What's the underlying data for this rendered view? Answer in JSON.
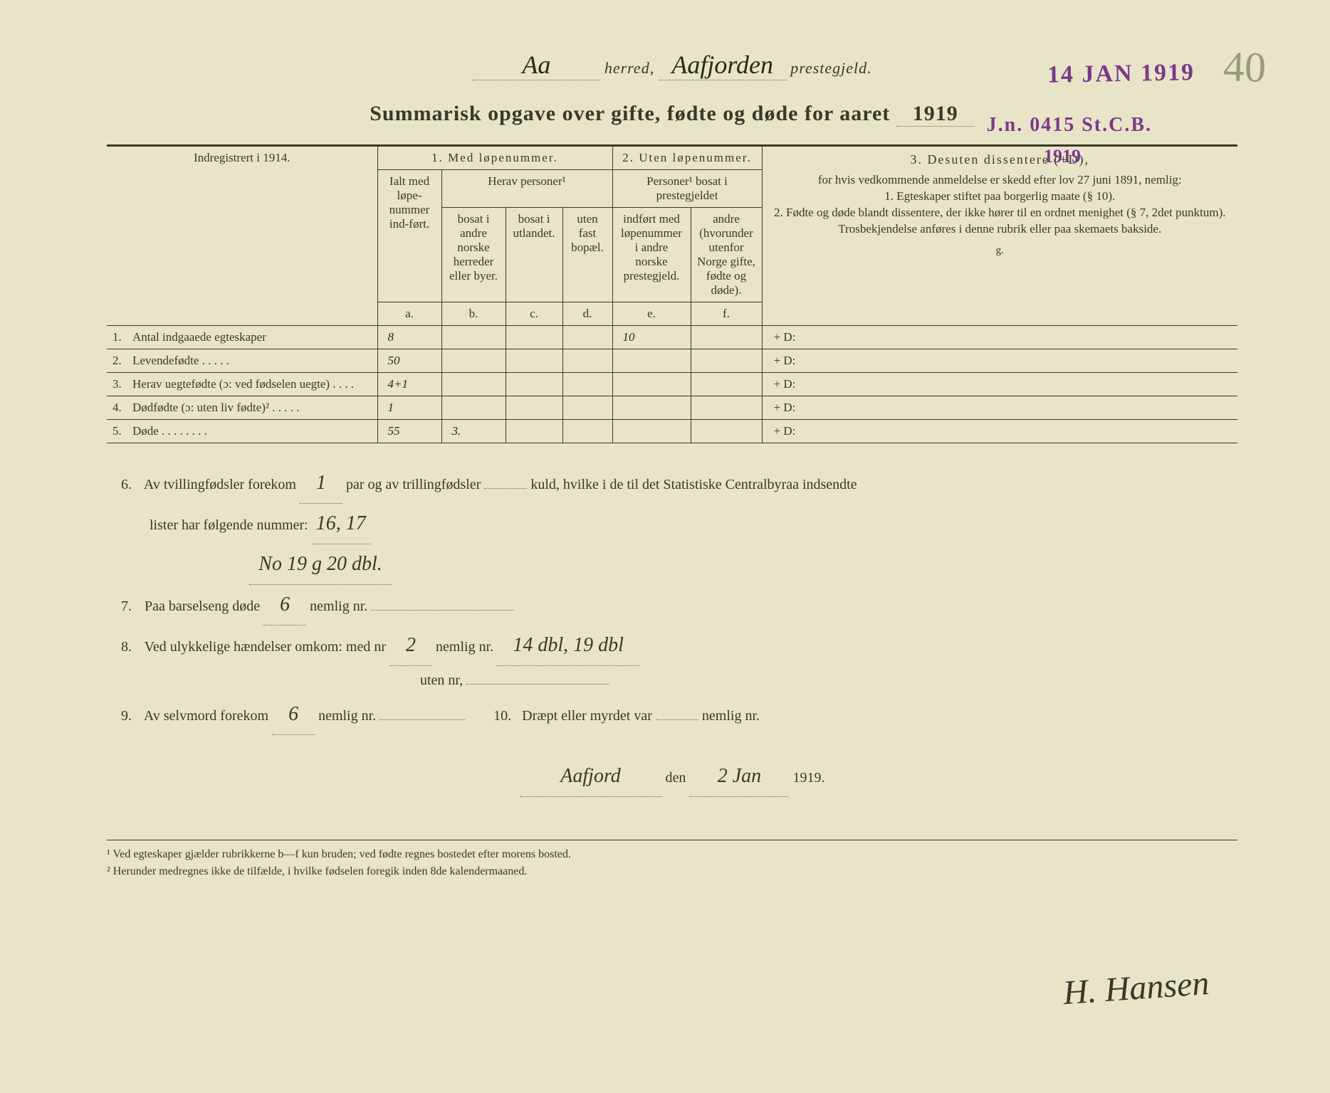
{
  "pageNumber": "40",
  "stampDate": "14 JAN 1919",
  "stampJn": "J.n. 0415 St.C.B.",
  "stampYear": "1919",
  "header": {
    "herred": "Aa",
    "herredLabel": "herred,",
    "prestegjeld": "Aafjorden",
    "prestegjeldLabel": "prestegjeld."
  },
  "title": {
    "pre": "Summarisk opgave over gifte, fødte og døde for aaret",
    "year": "1919"
  },
  "tableHead": {
    "indreg": "Indregistrert i 1914.",
    "sec1": "1. Med løpenummer.",
    "sec2": "2. Uten løpenummer.",
    "sec3": "3. Desuten dissentere (+D),",
    "ialt": "Ialt med løpe-nummer ind-ført.",
    "herav": "Herav personer¹",
    "b": "bosat i andre norske herreder eller byer.",
    "c": "bosat i utlandet.",
    "d": "uten fast bopæl.",
    "pers2": "Personer¹ bosat i prestegjeldet",
    "e": "indført med løpenummer i andre norske prestegjeld.",
    "f": "andre (hvorunder utenfor Norge gifte, fødte og døde).",
    "gtext": "for hvis vedkommende anmeldelse er skedd efter lov 27 juni 1891, nemlig:\n1. Egteskaper stiftet paa borgerlig maate (§ 10).\n2. Fødte og døde blandt dissentere, der ikke hører til en ordnet menighet (§ 7, 2det punktum).\nTrosbekjendelse anføres i denne rubrik eller paa skemaets bakside.",
    "la": "a.",
    "lb": "b.",
    "lc": "c.",
    "ld": "d.",
    "le": "e.",
    "lf": "f.",
    "lg": "g."
  },
  "rows": [
    {
      "n": "1.",
      "label": "Antal indgaaede egteskaper",
      "a": "8",
      "b": "",
      "c": "",
      "d": "",
      "e": "10",
      "f": "",
      "g": "+ D:"
    },
    {
      "n": "2.",
      "label": "Levendefødte . . . . .",
      "a": "50",
      "b": "",
      "c": "",
      "d": "",
      "e": "",
      "f": "",
      "g": "+ D:"
    },
    {
      "n": "3.",
      "label": "Herav uegtefødte (ɔ: ved fødselen uegte) . . . .",
      "a": "4+1",
      "b": "",
      "c": "",
      "d": "",
      "e": "",
      "f": "",
      "g": "+ D:"
    },
    {
      "n": "4.",
      "label": "Dødfødte (ɔ: uten liv fødte)² . . . . .",
      "a": "1",
      "b": "",
      "c": "",
      "d": "",
      "e": "",
      "f": "",
      "g": "+ D:"
    },
    {
      "n": "5.",
      "label": "Døde . . . . . . . .",
      "a": "55",
      "b": "3.",
      "c": "",
      "d": "",
      "e": "",
      "f": "",
      "g": "+ D:"
    }
  ],
  "lower": {
    "l6a": "Av tvillingfødsler forekom",
    "l6twin": "1",
    "l6b": "par og av trillingfødsler",
    "l6trip": "",
    "l6c": "kuld, hvilke i de til det Statistiske Centralbyraa indsendte",
    "l6d": "lister har følgende nummer:",
    "l6nums": "16, 17",
    "l6extra": "No 19 g 20 dbl.",
    "l7a": "Paa barselseng døde",
    "l7n": "6",
    "l7b": "nemlig nr.",
    "l7v": "",
    "l8a": "Ved ulykkelige hændelser omkom: med nr",
    "l8m": "2",
    "l8b": "nemlig nr.",
    "l8v": "14 dbl, 19 dbl",
    "l8c": "uten nr,",
    "l8u": "",
    "l9a": "Av selvmord forekom",
    "l9n": "6",
    "l9b": "nemlig nr.",
    "l9v": "",
    "l10a": "Dræpt eller myrdet var",
    "l10n": "",
    "l10b": "nemlig nr.",
    "sigPlace": "Aafjord",
    "sigDen": "den",
    "sigDate": "2 Jan",
    "sigYear": "1919.",
    "signature": "H. Hansen"
  },
  "footnotes": {
    "f1": "¹ Ved egteskaper gjælder rubrikkerne b—f kun bruden; ved fødte regnes bostedet efter morens bosted.",
    "f2": "² Herunder medregnes ikke de tilfælde, i hvilke fødselen foregik inden 8de kalendermaaned."
  }
}
